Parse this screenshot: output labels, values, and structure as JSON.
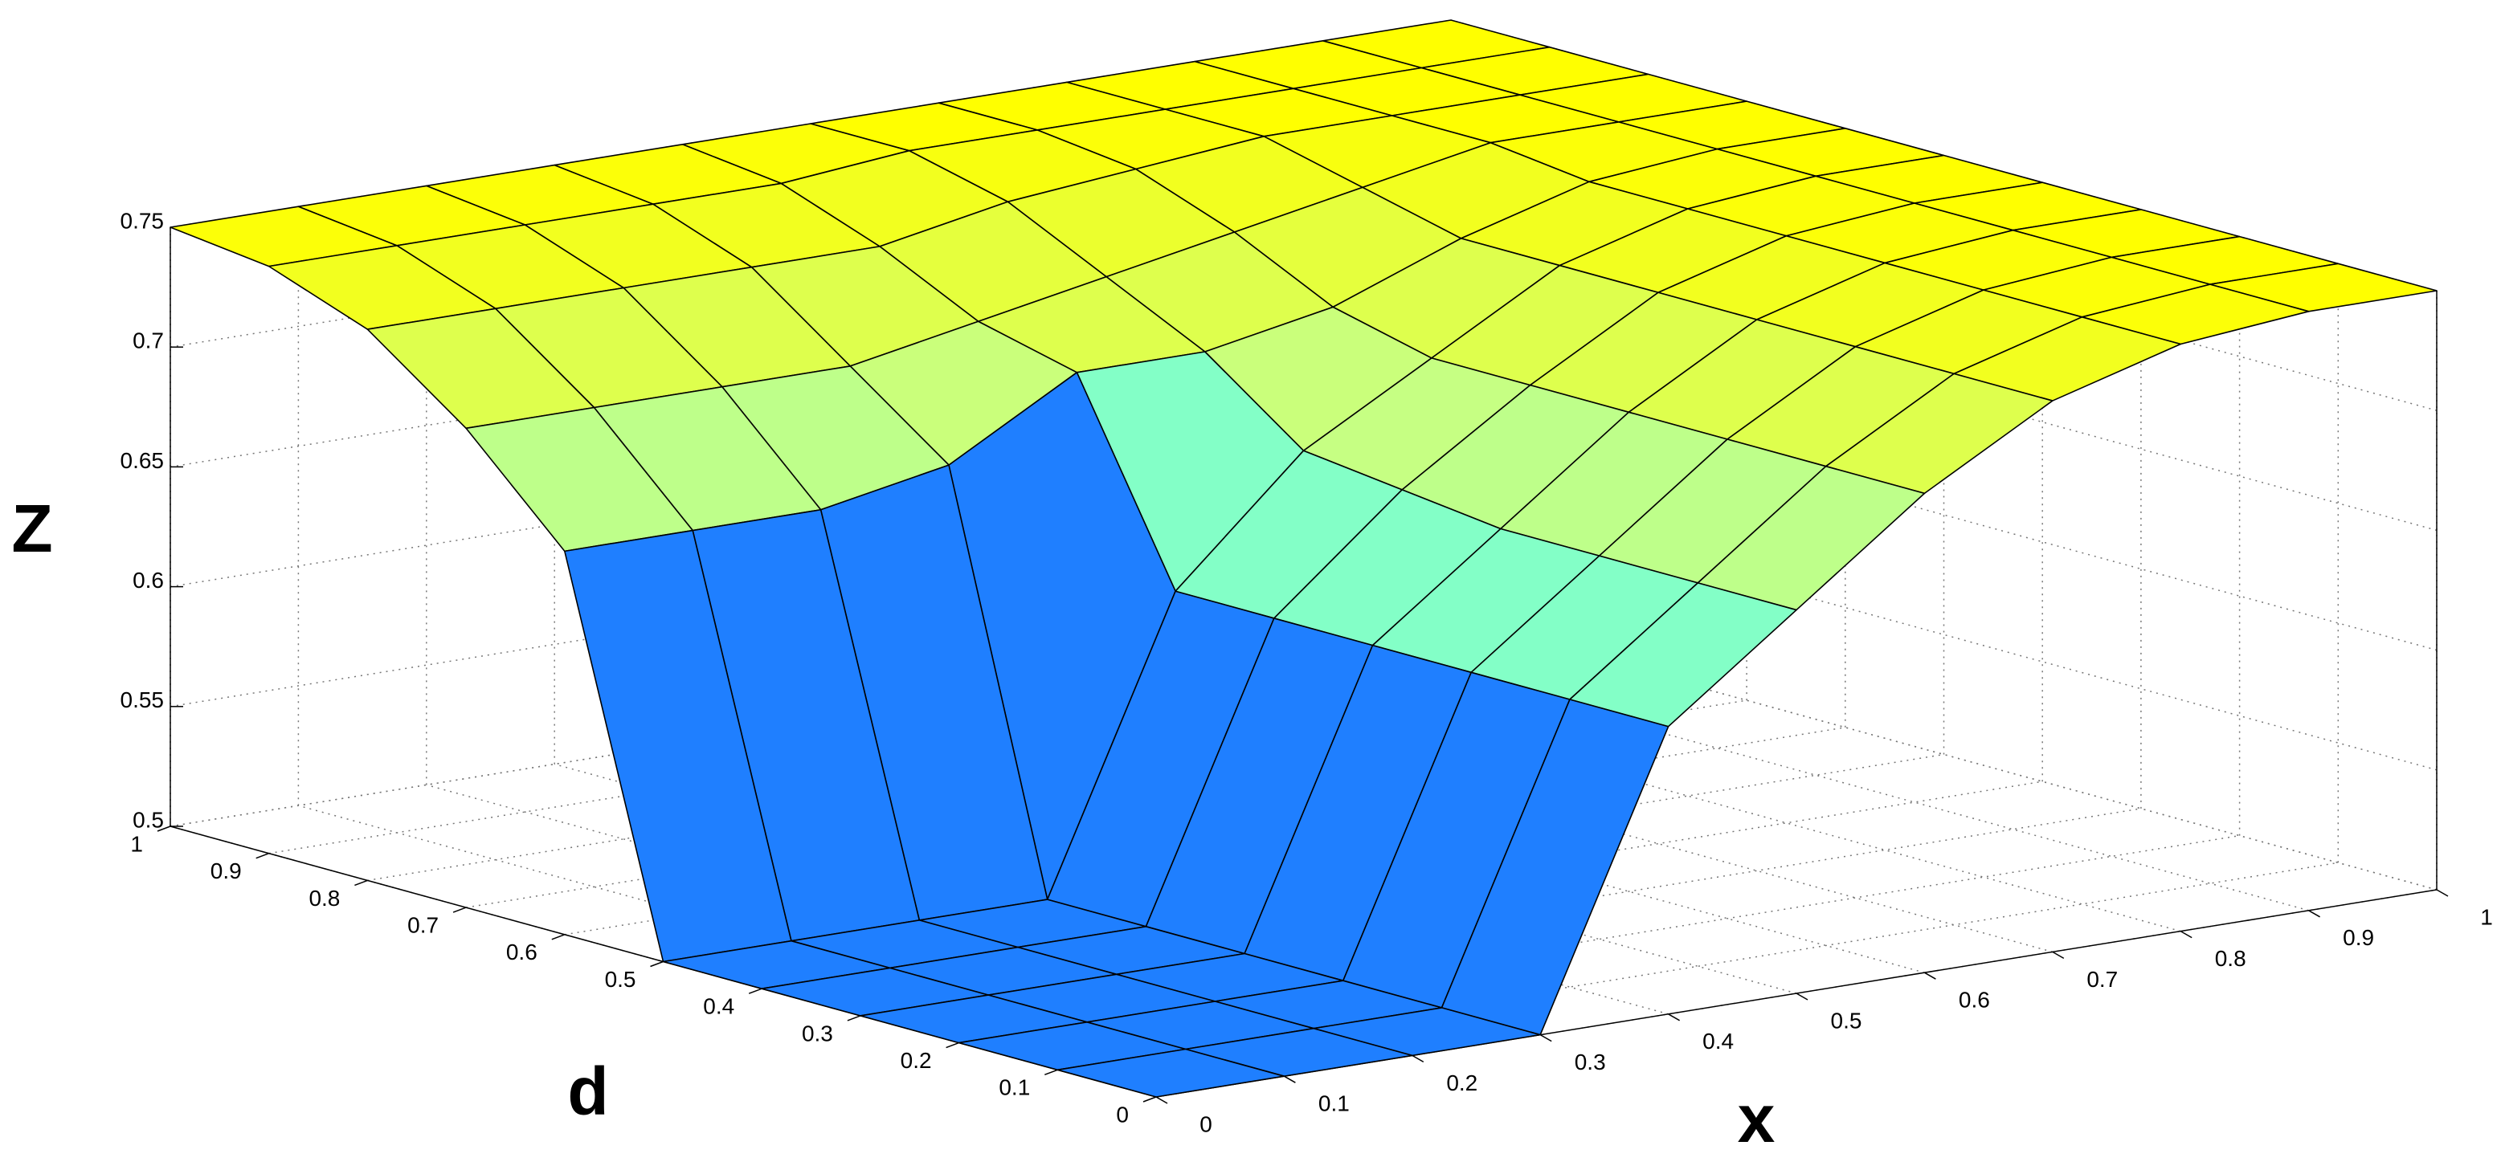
{
  "chart_data": {
    "type": "surface",
    "xlabel": "x",
    "ylabel": "d",
    "zlabel": "Z",
    "x": [
      0,
      0.1,
      0.2,
      0.3,
      0.4,
      0.5,
      0.6,
      0.7,
      0.8,
      0.9,
      1
    ],
    "y": [
      0,
      0.1,
      0.2,
      0.3,
      0.4,
      0.5,
      0.6,
      0.7,
      0.8,
      0.9,
      1
    ],
    "z": [
      [
        0.5,
        0.5,
        0.5,
        0.5,
        0.62,
        0.66,
        0.7,
        0.73,
        0.745,
        0.75,
        0.75
      ],
      [
        0.5,
        0.5,
        0.5,
        0.5,
        0.62,
        0.66,
        0.7,
        0.73,
        0.745,
        0.75,
        0.75
      ],
      [
        0.5,
        0.5,
        0.5,
        0.5,
        0.62,
        0.66,
        0.7,
        0.73,
        0.745,
        0.75,
        0.75
      ],
      [
        0.5,
        0.5,
        0.5,
        0.5,
        0.62,
        0.66,
        0.7,
        0.73,
        0.745,
        0.75,
        0.75
      ],
      [
        0.5,
        0.5,
        0.5,
        0.5,
        0.62,
        0.665,
        0.7,
        0.73,
        0.745,
        0.75,
        0.75
      ],
      [
        0.5,
        0.5,
        0.5,
        0.5,
        0.62,
        0.67,
        0.7,
        0.73,
        0.745,
        0.75,
        0.75
      ],
      [
        0.66,
        0.66,
        0.66,
        0.67,
        0.7,
        0.7,
        0.71,
        0.73,
        0.745,
        0.75,
        0.75
      ],
      [
        0.7,
        0.7,
        0.7,
        0.7,
        0.71,
        0.72,
        0.73,
        0.74,
        0.75,
        0.75,
        0.75
      ],
      [
        0.73,
        0.73,
        0.73,
        0.73,
        0.73,
        0.74,
        0.745,
        0.75,
        0.75,
        0.75,
        0.75
      ],
      [
        0.745,
        0.745,
        0.745,
        0.745,
        0.745,
        0.75,
        0.75,
        0.75,
        0.75,
        0.75,
        0.75
      ],
      [
        0.75,
        0.75,
        0.75,
        0.75,
        0.75,
        0.75,
        0.75,
        0.75,
        0.75,
        0.75,
        0.75
      ]
    ],
    "xlim": [
      0,
      1
    ],
    "ylim": [
      0,
      1
    ],
    "zlim": [
      0.5,
      0.75
    ],
    "xticks": [
      0,
      0.1,
      0.2,
      0.3,
      0.4,
      0.5,
      0.6,
      0.7,
      0.8,
      0.9,
      1
    ],
    "yticks": [
      0,
      0.1,
      0.2,
      0.3,
      0.4,
      0.5,
      0.6,
      0.7,
      0.8,
      0.9,
      1
    ],
    "zticks": [
      0.5,
      0.55,
      0.6,
      0.65,
      0.7,
      0.75
    ],
    "grid": true,
    "colormap": [
      "#1f7fff",
      "#4dffff",
      "#c8ff80",
      "#ffff00"
    ]
  }
}
